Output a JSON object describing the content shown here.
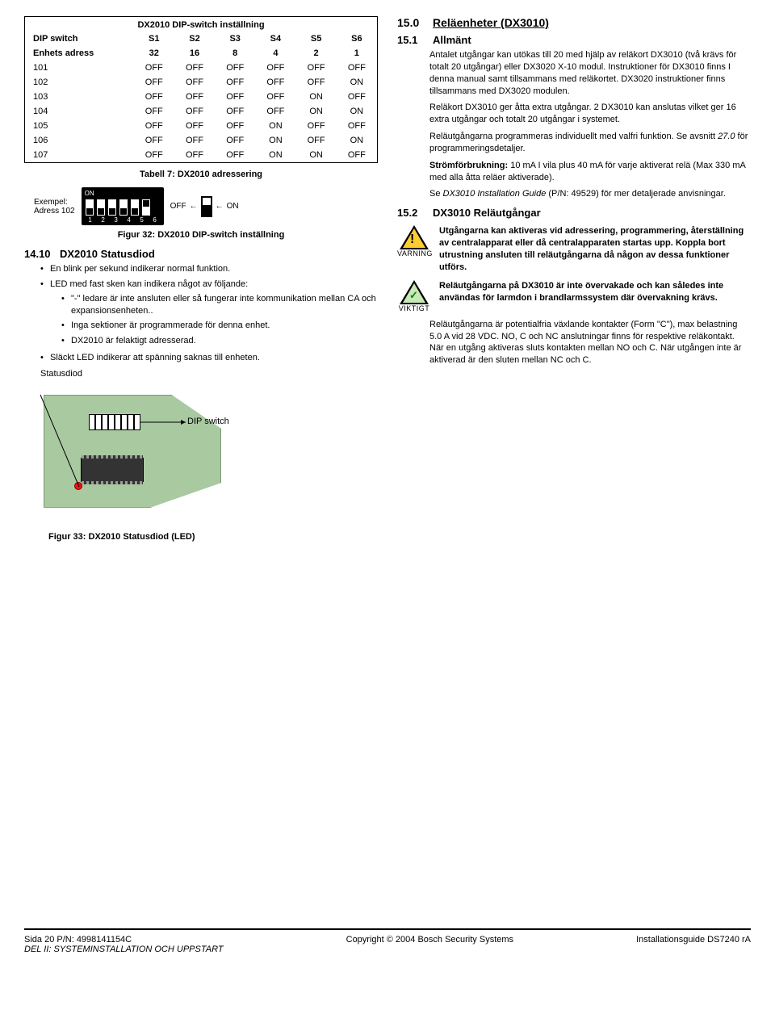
{
  "left": {
    "table": {
      "title": "DX2010 DIP-switch inställning",
      "col_headers_row1": [
        "DIP switch",
        "S1",
        "S2",
        "S3",
        "S4",
        "S5",
        "S6"
      ],
      "col_headers_row2": [
        "Enhets adress",
        "32",
        "16",
        "8",
        "4",
        "2",
        "1"
      ],
      "rows": [
        [
          "101",
          "OFF",
          "OFF",
          "OFF",
          "OFF",
          "OFF",
          "OFF"
        ],
        [
          "102",
          "OFF",
          "OFF",
          "OFF",
          "OFF",
          "OFF",
          "ON"
        ],
        [
          "103",
          "OFF",
          "OFF",
          "OFF",
          "OFF",
          "ON",
          "OFF"
        ],
        [
          "104",
          "OFF",
          "OFF",
          "OFF",
          "OFF",
          "ON",
          "ON"
        ],
        [
          "105",
          "OFF",
          "OFF",
          "OFF",
          "ON",
          "OFF",
          "OFF"
        ],
        [
          "106",
          "OFF",
          "OFF",
          "OFF",
          "ON",
          "OFF",
          "ON"
        ],
        [
          "107",
          "OFF",
          "OFF",
          "OFF",
          "ON",
          "ON",
          "OFF"
        ]
      ],
      "caption_below": "Tabell 7: DX2010 adressering"
    },
    "dip_example": {
      "left_label_line1": "Exempel:",
      "left_label_line2": "Adress 102",
      "on_label": "ON",
      "numbers": [
        "1",
        "2",
        "3",
        "4",
        "5",
        "6"
      ],
      "right_off": "OFF",
      "right_on": "ON",
      "positions": [
        "down",
        "down",
        "down",
        "down",
        "down",
        "up"
      ]
    },
    "figure32": "Figur 32: DX2010 DIP-switch inställning",
    "sec_14_10_num": "14.10",
    "sec_14_10_title": "DX2010 Statusdiod",
    "bullets_14_10": [
      "En blink per sekund indikerar normal funktion.",
      "LED med fast sken kan indikera något av följande:"
    ],
    "sub_bullets": [
      "\"-\" ledare är inte ansluten eller så fungerar inte kommunikation mellan CA och expansionsenheten..",
      "Inga sektioner är programmerade för denna enhet.",
      "DX2010 är felaktigt adresserad."
    ],
    "bullets_after": [
      "Släckt LED indikerar att spänning saknas till enheten."
    ],
    "statusdiod_label": "Statusdiod",
    "dip_switch_callout": "DIP switch",
    "figure33": "Figur 33: DX2010 Statusdiod (LED)"
  },
  "right": {
    "sec_15_0_num": "15.0",
    "sec_15_0_title": "Reläenheter (DX3010)",
    "sec_15_1_num": "15.1",
    "sec_15_1_title": "Allmänt",
    "p_15_1": [
      "Antalet utgångar kan utökas till 20 med hjälp av reläkort DX3010 (två krävs för totalt 20 utgångar) eller DX3020 X-10 modul. Instruktioner för DX3010 finns I denna manual samt tillsammans med reläkortet. DX3020 instruktioner finns tillsammans med DX3020 modulen.",
      "Reläkort DX3010 ger åtta extra utgångar. 2 DX3010 kan anslutas vilket ger 16 extra utgångar och totalt 20 utgångar i systemet.",
      "Reläutgångarna programmeras individuellt med valfri funktion. Se avsnitt 27.0 för programmeringsdetaljer."
    ],
    "p_15_1_strong_label": "Strömförbrukning:",
    "p_15_1_strong_rest": " 10 mA I vila plus 40 mA för varje aktiverat relä (Max 330 mA med alla åtta reläer aktiverade).",
    "p_15_1_guide_pre": "Se ",
    "p_15_1_guide_italic": "DX3010 Installation Guide",
    "p_15_1_guide_post": " (P/N: 49529) för mer detaljerade anvisningar.",
    "sec_15_2_num": "15.2",
    "sec_15_2_title": "DX3010 Reläutgångar",
    "warning_label": "VARNING",
    "warning_text": "Utgångarna kan aktiveras vid adressering, programmering, återställning av centralapparat eller då centralapparaten startas upp. Koppla bort utrustning ansluten till reläutgångarna då någon av dessa funktioner utförs.",
    "important_label": "VIKTIGT",
    "important_text": "Reläutgångarna på DX3010 är inte övervakade och kan således inte användas för larmdon i brandlarmssystem där övervakning krävs.",
    "p_15_2_rest": [
      "Reläutgångarna är potentialfria växlande kontakter (Form \"C\"), max belastning 5.0 A vid 28 VDC. NO, C och NC anslutningar finns för respektive reläkontakt. När en utgång aktiveras sluts kontakten mellan NO och C. När utgången inte är aktiverad är den sluten mellan NC och C."
    ]
  },
  "footer": {
    "left1": "Sida 20  P/N: 4998141154C",
    "left2": "DEL II: SYSTEMINSTALLATION OCH UPPSTART",
    "center": "Copyright © 2004 Bosch Security Systems",
    "right": "Installationsguide DS7240 rA"
  },
  "styling": {
    "colors": {
      "text": "#000000",
      "background": "#ffffff",
      "pcb_green": "#a9c9a1",
      "warn_tri_fill": "#fecd34",
      "ok_tri_fill": "#c9e8b8",
      "led_red": "#ee1111"
    },
    "fonts": {
      "body_pt": 11,
      "section_pt": 13,
      "caption_weight": "bold"
    }
  }
}
